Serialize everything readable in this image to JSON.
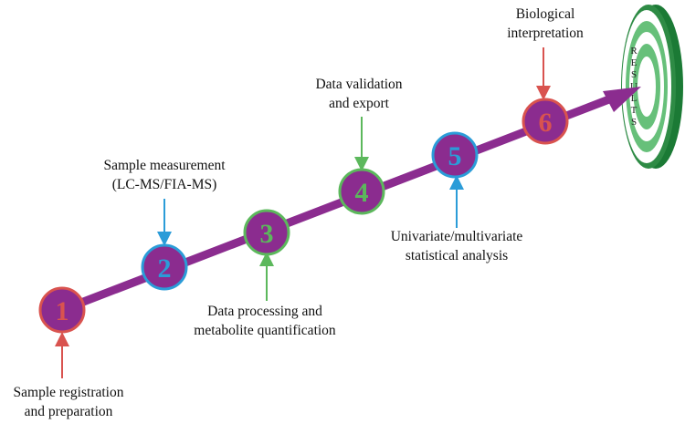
{
  "nodes": [
    {
      "number": "1",
      "label": [
        "Sample registration",
        "and preparation"
      ]
    },
    {
      "number": "2",
      "label": [
        "Sample measurement",
        "(LC-MS/FIA-MS)"
      ]
    },
    {
      "number": "3",
      "label": [
        "Data processing and",
        "metabolite quantification"
      ]
    },
    {
      "number": "4",
      "label": [
        "Data validation",
        "and export"
      ]
    },
    {
      "number": "5",
      "label": [
        "Univariate/multivariate",
        "statistical analysis"
      ]
    },
    {
      "number": "6",
      "label": [
        "Biological",
        "interpretation"
      ]
    }
  ],
  "target": {
    "label": "RESULTS"
  }
}
